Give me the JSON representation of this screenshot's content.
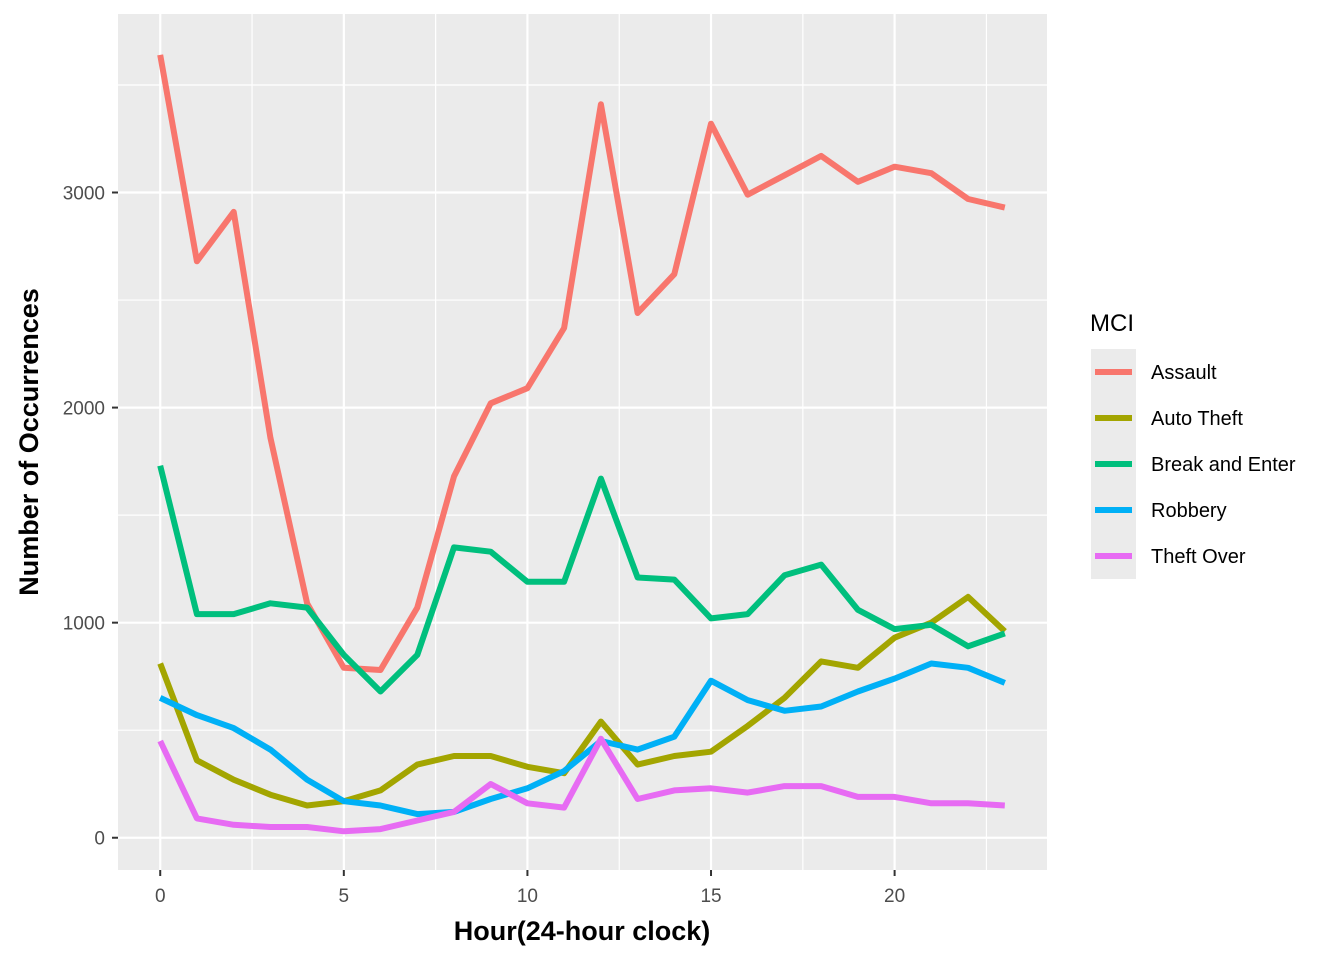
{
  "chart_data": {
    "type": "line",
    "title": "",
    "xlabel": "Hour(24-hour clock)",
    "ylabel": "Number of Occurrences",
    "x": [
      0,
      1,
      2,
      3,
      4,
      5,
      6,
      7,
      8,
      9,
      10,
      11,
      12,
      13,
      14,
      15,
      16,
      17,
      18,
      19,
      20,
      21,
      22,
      23
    ],
    "xlim": [
      -1.15,
      24.15
    ],
    "ylim": [
      -150,
      3830
    ],
    "x_ticks": [
      0,
      5,
      10,
      15,
      20
    ],
    "x_tick_labels": [
      "0",
      "5",
      "10",
      "15",
      "20"
    ],
    "y_ticks": [
      0,
      1000,
      2000,
      3000
    ],
    "y_tick_labels": [
      "0",
      "1000",
      "2000",
      "3000"
    ],
    "grid": true,
    "legend_title": "MCI",
    "legend_position": "right",
    "series": [
      {
        "name": "Assault",
        "color": "#F8766D",
        "values": [
          3640,
          2680,
          2910,
          1860,
          1090,
          790,
          780,
          1070,
          1680,
          2020,
          2090,
          2370,
          3410,
          2440,
          2620,
          3320,
          2990,
          3080,
          3170,
          3050,
          3120,
          3090,
          2970,
          2930
        ]
      },
      {
        "name": "Auto Theft",
        "color": "#A3A500",
        "values": [
          810,
          360,
          270,
          200,
          150,
          170,
          220,
          340,
          380,
          380,
          330,
          300,
          540,
          340,
          380,
          400,
          520,
          650,
          820,
          790,
          930,
          1000,
          1120,
          960
        ]
      },
      {
        "name": "Break and Enter",
        "color": "#00BF7D",
        "values": [
          1730,
          1040,
          1040,
          1090,
          1070,
          850,
          680,
          850,
          1350,
          1330,
          1190,
          1190,
          1670,
          1210,
          1200,
          1020,
          1040,
          1220,
          1270,
          1060,
          970,
          990,
          890,
          950
        ]
      },
      {
        "name": "Robbery",
        "color": "#00B0F6",
        "values": [
          650,
          570,
          510,
          410,
          270,
          170,
          150,
          110,
          120,
          180,
          230,
          310,
          450,
          410,
          470,
          730,
          640,
          590,
          610,
          680,
          740,
          810,
          790,
          720
        ]
      },
      {
        "name": "Theft Over",
        "color": "#E76BF3",
        "values": [
          450,
          90,
          60,
          50,
          50,
          30,
          40,
          80,
          120,
          250,
          160,
          140,
          460,
          180,
          220,
          230,
          210,
          240,
          240,
          190,
          190,
          160,
          160,
          150
        ]
      }
    ]
  }
}
